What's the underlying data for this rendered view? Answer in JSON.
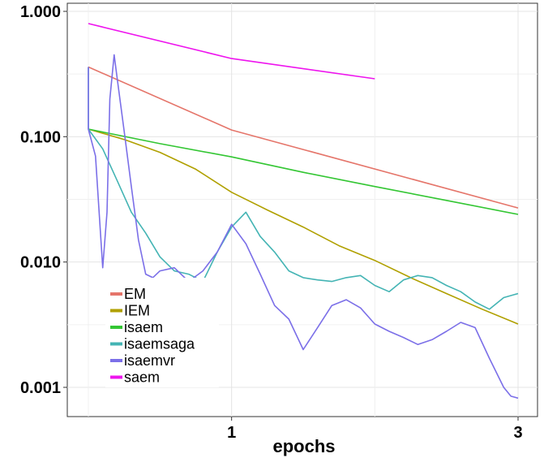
{
  "chart_data": {
    "type": "line",
    "xlabel": "epochs",
    "ylabel": "",
    "y_scale": "log10",
    "xlim": [
      0,
      3.0
    ],
    "ylim": [
      0.00065,
      1.2
    ],
    "x_ticks": [
      {
        "value": 1,
        "label": "1"
      },
      {
        "value": 3,
        "label": "3"
      }
    ],
    "y_ticks": [
      {
        "value": 1.0,
        "label": "1.000"
      },
      {
        "value": 0.1,
        "label": "0.100"
      },
      {
        "value": 0.01,
        "label": "0.010"
      },
      {
        "value": 0.001,
        "label": "0.001"
      }
    ],
    "grid": true,
    "legend_position": "bottom-left inside",
    "series": [
      {
        "name": "EM",
        "color": "#e5756a",
        "x": [
          0,
          1,
          3
        ],
        "y": [
          0.36,
          0.113,
          0.027
        ]
      },
      {
        "name": "IEM",
        "color": "#b0a000",
        "x": [
          0,
          0.25,
          0.5,
          0.75,
          1.0,
          1.25,
          1.5,
          1.75,
          2.0,
          2.25,
          2.5,
          2.75,
          3.0
        ],
        "y": [
          0.115,
          0.095,
          0.075,
          0.055,
          0.036,
          0.026,
          0.019,
          0.0135,
          0.0103,
          0.0075,
          0.0056,
          0.0042,
          0.0032
        ]
      },
      {
        "name": "isaem",
        "color": "#33c633",
        "x": [
          0,
          0.5,
          1.0,
          1.5,
          2.0,
          2.5,
          3.0
        ],
        "y": [
          0.115,
          0.088,
          0.069,
          0.052,
          0.04,
          0.031,
          0.024
        ]
      },
      {
        "name": "isaemsaga",
        "color": "#44b4b4",
        "x": [
          0,
          0.0,
          0.1,
          0.2,
          0.3,
          0.4,
          0.5,
          0.6,
          0.7,
          0.8,
          0.9,
          1.0,
          1.1,
          1.2,
          1.3,
          1.4,
          1.5,
          1.6,
          1.7,
          1.8,
          1.9,
          2.0,
          2.1,
          2.2,
          2.3,
          2.4,
          2.5,
          2.6,
          2.7,
          2.8,
          2.9,
          3.0
        ],
        "y": [
          0.36,
          0.115,
          0.08,
          0.045,
          0.025,
          0.017,
          0.011,
          0.0085,
          0.008,
          0.007,
          0.012,
          0.019,
          0.025,
          0.016,
          0.012,
          0.0085,
          0.0075,
          0.0072,
          0.007,
          0.0075,
          0.0078,
          0.0065,
          0.0058,
          0.0072,
          0.0078,
          0.0075,
          0.0065,
          0.0058,
          0.0048,
          0.0042,
          0.0052,
          0.0056
        ]
      },
      {
        "name": "isaemvr",
        "color": "#7b6fe8",
        "x": [
          0,
          0.0,
          0.05,
          0.1,
          0.13,
          0.15,
          0.18,
          0.2,
          0.25,
          0.3,
          0.35,
          0.4,
          0.45,
          0.5,
          0.6,
          0.7,
          0.8,
          0.9,
          1.0,
          1.1,
          1.2,
          1.3,
          1.4,
          1.5,
          1.6,
          1.7,
          1.8,
          1.9,
          2.0,
          2.1,
          2.2,
          2.3,
          2.4,
          2.5,
          2.6,
          2.7,
          2.8,
          2.9,
          2.95,
          3.0
        ],
        "y": [
          0.36,
          0.115,
          0.07,
          0.009,
          0.025,
          0.2,
          0.45,
          0.3,
          0.11,
          0.04,
          0.015,
          0.008,
          0.0075,
          0.0085,
          0.009,
          0.007,
          0.0085,
          0.012,
          0.02,
          0.014,
          0.008,
          0.0045,
          0.0035,
          0.002,
          0.003,
          0.0045,
          0.005,
          0.0043,
          0.0032,
          0.0028,
          0.0025,
          0.0022,
          0.0024,
          0.0028,
          0.0033,
          0.003,
          0.0017,
          0.001,
          0.00085,
          0.00082
        ]
      },
      {
        "name": "saem",
        "color": "#ee14ee",
        "x": [
          0,
          1,
          2
        ],
        "y": [
          0.8,
          0.42,
          0.29
        ]
      }
    ]
  }
}
